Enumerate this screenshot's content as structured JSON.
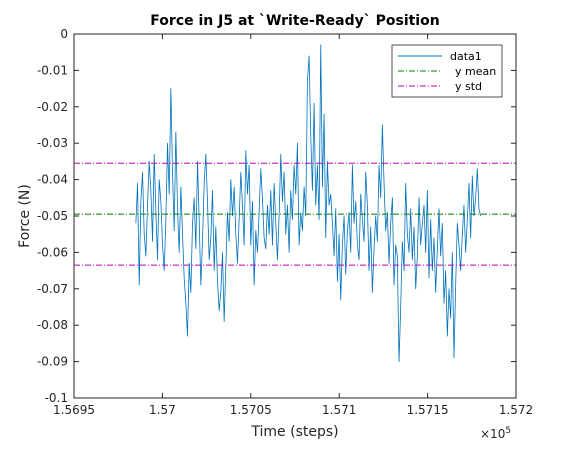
{
  "chart_data": {
    "type": "line",
    "title": "Force in J5 at `Write-Ready` Position",
    "xlabel": "Time (steps)",
    "ylabel": "Force (N)",
    "x_exponent_label": "×10",
    "x_exponent_power": "5",
    "xlim": [
      156950,
      157200
    ],
    "ylim": [
      -0.1,
      0
    ],
    "x_ticks": [
      156950,
      157000,
      157050,
      157100,
      157150,
      157200
    ],
    "x_tick_labels": [
      "1.5695",
      "1.57",
      "1.5705",
      "1.571",
      "1.5715",
      "1.572"
    ],
    "y_ticks": [
      0,
      -0.01,
      -0.02,
      -0.03,
      -0.04,
      -0.05,
      -0.06,
      -0.07,
      -0.08,
      -0.09,
      -0.1
    ],
    "y_tick_labels": [
      "0",
      "-0.01",
      "-0.02",
      "-0.03",
      "-0.04",
      "-0.05",
      "-0.06",
      "-0.07",
      "-0.08",
      "-0.09",
      "-0.1"
    ],
    "legend_placement": "top-right",
    "grid": false,
    "series": [
      {
        "name": "data1",
        "color": "#0072bd",
        "style": "solid",
        "x_start": 156985,
        "x_end": 157180,
        "values": [
          -0.052,
          -0.041,
          -0.069,
          -0.046,
          -0.038,
          -0.055,
          -0.061,
          -0.047,
          -0.035,
          -0.043,
          -0.057,
          -0.033,
          -0.049,
          -0.062,
          -0.04,
          -0.046,
          -0.058,
          -0.065,
          -0.051,
          -0.03,
          -0.044,
          -0.015,
          -0.038,
          -0.054,
          -0.027,
          -0.048,
          -0.06,
          -0.042,
          -0.055,
          -0.067,
          -0.074,
          -0.083,
          -0.063,
          -0.071,
          -0.052,
          -0.045,
          -0.059,
          -0.035,
          -0.051,
          -0.069,
          -0.057,
          -0.041,
          -0.033,
          -0.046,
          -0.062,
          -0.056,
          -0.043,
          -0.065,
          -0.053,
          -0.068,
          -0.076,
          -0.071,
          -0.06,
          -0.079,
          -0.064,
          -0.049,
          -0.057,
          -0.04,
          -0.05,
          -0.042,
          -0.055,
          -0.063,
          -0.051,
          -0.038,
          -0.047,
          -0.058,
          -0.032,
          -0.044,
          -0.036,
          -0.058,
          -0.046,
          -0.069,
          -0.054,
          -0.06,
          -0.049,
          -0.037,
          -0.045,
          -0.056,
          -0.059,
          -0.047,
          -0.055,
          -0.043,
          -0.058,
          -0.041,
          -0.052,
          -0.062,
          -0.05,
          -0.033,
          -0.046,
          -0.038,
          -0.055,
          -0.047,
          -0.06,
          -0.043,
          -0.051,
          -0.036,
          -0.044,
          -0.03,
          -0.058,
          -0.049,
          -0.054,
          -0.042,
          -0.05,
          -0.013,
          -0.006,
          -0.028,
          -0.043,
          -0.019,
          -0.047,
          -0.036,
          -0.051,
          -0.003,
          -0.042,
          -0.022,
          -0.056,
          -0.035,
          -0.047,
          -0.044,
          -0.052,
          -0.061,
          -0.048,
          -0.068,
          -0.055,
          -0.073,
          -0.058,
          -0.05,
          -0.066,
          -0.054,
          -0.049,
          -0.06,
          -0.036,
          -0.052,
          -0.046,
          -0.058,
          -0.062,
          -0.044,
          -0.051,
          -0.057,
          -0.038,
          -0.047,
          -0.065,
          -0.053,
          -0.071,
          -0.059,
          -0.05,
          -0.057,
          -0.036,
          -0.045,
          -0.025,
          -0.041,
          -0.054,
          -0.049,
          -0.063,
          -0.052,
          -0.045,
          -0.069,
          -0.058,
          -0.061,
          -0.09,
          -0.075,
          -0.057,
          -0.065,
          -0.041,
          -0.055,
          -0.06,
          -0.048,
          -0.062,
          -0.053,
          -0.07,
          -0.061,
          -0.045,
          -0.058,
          -0.052,
          -0.047,
          -0.06,
          -0.043,
          -0.067,
          -0.051,
          -0.065,
          -0.056,
          -0.071,
          -0.059,
          -0.048,
          -0.061,
          -0.052,
          -0.074,
          -0.065,
          -0.083,
          -0.07,
          -0.078,
          -0.06,
          -0.089,
          -0.069,
          -0.052,
          -0.058,
          -0.065,
          -0.055,
          -0.047,
          -0.06,
          -0.051,
          -0.041,
          -0.056,
          -0.039,
          -0.05,
          -0.045,
          -0.037,
          -0.048,
          -0.05
        ]
      },
      {
        "name": "y mean",
        "color": "#008000",
        "style": "dashdot",
        "y": -0.0495
      },
      {
        "name": "y std",
        "color": "#bf00bf",
        "style": "dashdot",
        "y_values": [
          -0.0355,
          -0.0635
        ]
      }
    ]
  }
}
